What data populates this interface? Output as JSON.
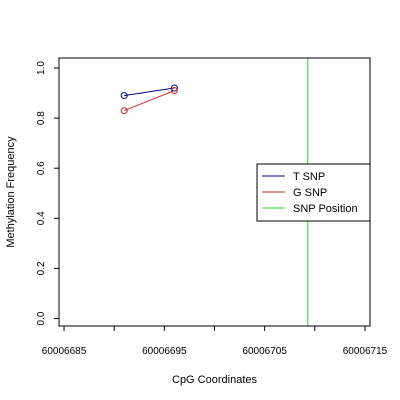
{
  "chart_data": {
    "type": "line",
    "xlabel": "CpG Coordinates",
    "ylabel": "Methylation Frequency",
    "xlim": [
      60006684.5,
      60006715.5
    ],
    "ylim": [
      -0.03,
      1.04
    ],
    "x_ticks": [
      60006685,
      60006690,
      60006695,
      60006700,
      60006705,
      60006710,
      60006715
    ],
    "x_tick_labels": [
      "60006685",
      "60006695",
      "60006705",
      "60006715"
    ],
    "x_tick_label_values": [
      60006685,
      60006695,
      60006705,
      60006715
    ],
    "y_ticks": [
      0.0,
      0.2,
      0.4,
      0.6,
      0.8,
      1.0
    ],
    "y_tick_labels": [
      "0.0",
      "0.2",
      "0.4",
      "0.6",
      "0.8",
      "1.0"
    ],
    "grid": false,
    "legend_position": "right",
    "series": [
      {
        "name": "T SNP",
        "color": "#00008b",
        "x": [
          60006691,
          60006696
        ],
        "y": [
          0.89,
          0.92
        ],
        "markers": true
      },
      {
        "name": "G SNP",
        "color": "#cd2626",
        "x": [
          60006691,
          60006696
        ],
        "y": [
          0.83,
          0.91
        ],
        "markers": true
      }
    ],
    "vlines": [
      {
        "name": "SNP Position",
        "color": "#32cd32",
        "x": 60006709.3
      }
    ],
    "legend": [
      "T SNP",
      "G SNP",
      "SNP Position"
    ]
  }
}
